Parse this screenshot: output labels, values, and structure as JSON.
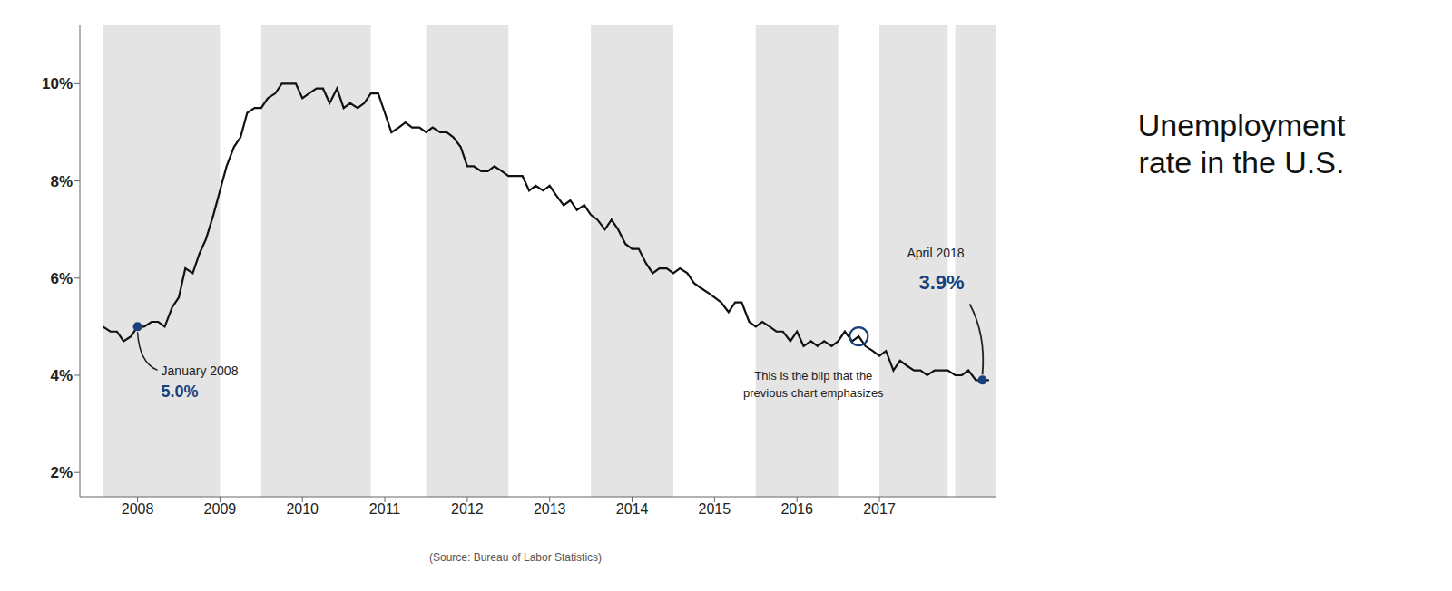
{
  "chart_data": {
    "type": "line",
    "title": "Unemployment\nrate in the U.S.",
    "source": "(Source: Bureau of Labor Statistics)",
    "color": "#111111",
    "grid": false,
    "x": [
      2007.58,
      2007.67,
      2007.75,
      2007.83,
      2007.92,
      2008.0,
      2008.08,
      2008.17,
      2008.25,
      2008.33,
      2008.42,
      2008.5,
      2008.58,
      2008.67,
      2008.75,
      2008.83,
      2008.92,
      2009.0,
      2009.08,
      2009.17,
      2009.25,
      2009.33,
      2009.42,
      2009.5,
      2009.58,
      2009.67,
      2009.75,
      2009.83,
      2009.92,
      2010.0,
      2010.08,
      2010.17,
      2010.25,
      2010.33,
      2010.42,
      2010.5,
      2010.58,
      2010.67,
      2010.75,
      2010.83,
      2010.92,
      2011.0,
      2011.08,
      2011.17,
      2011.25,
      2011.33,
      2011.42,
      2011.5,
      2011.58,
      2011.67,
      2011.75,
      2011.83,
      2011.92,
      2012.0,
      2012.08,
      2012.17,
      2012.25,
      2012.33,
      2012.42,
      2012.5,
      2012.58,
      2012.67,
      2012.75,
      2012.83,
      2012.92,
      2013.0,
      2013.08,
      2013.17,
      2013.25,
      2013.33,
      2013.42,
      2013.5,
      2013.58,
      2013.67,
      2013.75,
      2013.83,
      2013.92,
      2014.0,
      2014.08,
      2014.17,
      2014.25,
      2014.33,
      2014.42,
      2014.5,
      2014.58,
      2014.67,
      2014.75,
      2014.83,
      2014.92,
      2015.0,
      2015.08,
      2015.17,
      2015.25,
      2015.33,
      2015.42,
      2015.5,
      2015.58,
      2015.67,
      2015.75,
      2015.83,
      2015.92,
      2016.0,
      2016.08,
      2016.17,
      2016.25,
      2016.33,
      2016.42,
      2016.5,
      2016.58,
      2016.67,
      2016.75,
      2016.83,
      2016.92,
      2017.0,
      2017.08,
      2017.17,
      2017.25,
      2017.33,
      2017.42,
      2017.5,
      2017.58,
      2017.67,
      2017.75,
      2017.83,
      2017.92,
      2018.0,
      2018.08,
      2018.17,
      2018.25,
      2018.33
    ],
    "values": [
      5.0,
      4.9,
      4.9,
      4.7,
      4.8,
      5.0,
      5.0,
      5.1,
      5.1,
      5.0,
      5.4,
      5.6,
      6.2,
      6.1,
      6.5,
      6.8,
      7.3,
      7.8,
      8.3,
      8.7,
      8.9,
      9.4,
      9.5,
      9.5,
      9.7,
      9.8,
      10.0,
      10.0,
      10.0,
      9.7,
      9.8,
      9.9,
      9.9,
      9.6,
      9.9,
      9.5,
      9.6,
      9.5,
      9.6,
      9.8,
      9.8,
      9.4,
      9.0,
      9.1,
      9.2,
      9.1,
      9.1,
      9.0,
      9.1,
      9.0,
      9.0,
      8.9,
      8.7,
      8.3,
      8.3,
      8.2,
      8.2,
      8.3,
      8.2,
      8.1,
      8.1,
      8.1,
      7.8,
      7.9,
      7.8,
      7.9,
      7.7,
      7.5,
      7.6,
      7.4,
      7.5,
      7.3,
      7.2,
      7.0,
      7.2,
      7.0,
      6.7,
      6.6,
      6.6,
      6.3,
      6.1,
      6.2,
      6.2,
      6.1,
      6.2,
      6.1,
      5.9,
      5.8,
      5.7,
      5.6,
      5.5,
      5.3,
      5.5,
      5.5,
      5.1,
      5.0,
      5.1,
      5.0,
      4.9,
      4.9,
      4.7,
      4.9,
      4.6,
      4.7,
      4.6,
      4.7,
      4.6,
      4.7,
      4.9,
      4.7,
      4.8,
      4.6,
      4.5,
      4.4,
      4.5,
      4.1,
      4.3,
      4.2,
      4.1,
      4.1,
      4.0,
      4.1,
      4.1,
      4.1,
      4.0,
      4.0,
      4.1,
      3.9,
      3.9,
      3.9
    ],
    "xlim": [
      2007.3,
      2018.42
    ],
    "xticks": [
      2008,
      2009,
      2010,
      2011,
      2012,
      2013,
      2014,
      2015,
      2016,
      2017
    ],
    "ylim": [
      1.5,
      11.2
    ],
    "yticks": [
      {
        "value": 2,
        "label": "2%"
      },
      {
        "value": 4,
        "label": "4%"
      },
      {
        "value": 6,
        "label": "6%"
      },
      {
        "value": 8,
        "label": "8%"
      },
      {
        "value": 10,
        "label": "10%"
      }
    ],
    "shaded_bands": {
      "color": "#e4e4e4",
      "ranges": [
        [
          2007.58,
          2009.0
        ],
        [
          2009.5,
          2010.83
        ],
        [
          2011.5,
          2012.5
        ],
        [
          2013.5,
          2014.5
        ],
        [
          2015.5,
          2016.5
        ],
        [
          2017.0,
          2017.83
        ],
        [
          2017.92,
          2018.42
        ]
      ]
    },
    "annotations": [
      {
        "x": 2008.0,
        "y": 5.0,
        "text": "January 2008",
        "value_label": "5.0%",
        "marker": "dot",
        "color": "#1a3f7a"
      },
      {
        "x": 2016.75,
        "y": 4.8,
        "text": "This is the blip that the\nprevious chart emphasizes",
        "marker": "circle",
        "color": "#1a3f7a"
      },
      {
        "x": 2018.25,
        "y": 3.9,
        "text": "April 2018",
        "value_label": "3.9%",
        "marker": "dot",
        "color": "#1a3f7a"
      }
    ]
  }
}
